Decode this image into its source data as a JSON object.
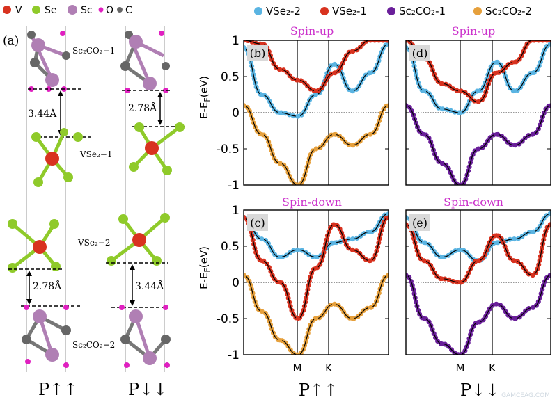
{
  "atom_legend": [
    {
      "symbol": "V",
      "color": "#d8321f"
    },
    {
      "symbol": "Se",
      "color": "#8fca2a"
    },
    {
      "symbol": "Sc",
      "color": "#b07fb4"
    },
    {
      "symbol": "O",
      "color": "#e020c0"
    },
    {
      "symbol": "C",
      "color": "#666666"
    }
  ],
  "band_legend": [
    {
      "label": "VSe₂-2",
      "color": "#5ab4e2"
    },
    {
      "label": "VSe₂-1",
      "color": "#d8321f"
    },
    {
      "label": "Sc₂CO₂-1",
      "color": "#6a1f9a"
    },
    {
      "label": "Sc₂CO₂-2",
      "color": "#e6a03c"
    }
  ],
  "structure": {
    "panel_label": "(a)",
    "layers": {
      "sc2co2_1": "Sc₂CO₂−1",
      "vse2_1": "VSe₂−1",
      "vse2_2": "VSe₂−2",
      "sc2co2_2": "Sc₂CO₂−2"
    },
    "dist_left_top": "3.44Å",
    "dist_right_top": "2.78Å",
    "dist_left_bottom": "2.78Å",
    "dist_right_bottom": "3.44Å",
    "config_left": "P↑↑",
    "config_right": "P↓↓"
  },
  "bands": {
    "ylabel": "E-Eₙ(eV)",
    "ylabel_main": "E-E",
    "ylabel_sub": "F",
    "ylabel_unit": "(eV)",
    "yticks": [
      "1",
      "0.5",
      "0",
      "-0.5",
      "-1"
    ],
    "ylim": [
      -1,
      1
    ],
    "xticks": [
      "M",
      "K"
    ],
    "spin_up": "Spin-up",
    "spin_down": "Spin-down",
    "config_left": "P↑↑",
    "config_right": "P↓↓",
    "panels": {
      "b": "(b)",
      "c": "(c)",
      "d": "(d)",
      "e": "(e)"
    }
  },
  "watermark": "GAMCEAG.COM",
  "chart_data": [
    {
      "type": "line",
      "panel": "(b)",
      "title": "Spin-up",
      "ylabel": "E-E_F(eV)",
      "ylim": [
        -1,
        1
      ],
      "xticks": [
        "M",
        "K"
      ],
      "series": [
        {
          "name": "VSe₂-2",
          "values": [
            0.9,
            0.25,
            0.0,
            -0.05,
            0.25,
            0.67,
            0.3,
            0.55,
            0.95
          ]
        },
        {
          "name": "VSe₂-1",
          "values": [
            1.0,
            0.95,
            0.6,
            0.45,
            0.3,
            0.55,
            0.85,
            1.0,
            1.0
          ]
        },
        {
          "name": "Sc₂CO₂-2",
          "values": [
            0.1,
            -0.3,
            -0.7,
            -1.0,
            -0.5,
            -0.3,
            -0.45,
            -0.3,
            0.1
          ]
        }
      ]
    },
    {
      "type": "line",
      "panel": "(c)",
      "title": "Spin-down",
      "ylabel": "E-E_F(eV)",
      "ylim": [
        -1,
        1
      ],
      "xticks": [
        "M",
        "K"
      ],
      "series": [
        {
          "name": "VSe₂-2",
          "values": [
            0.9,
            0.6,
            0.35,
            0.45,
            0.35,
            0.55,
            0.6,
            0.7,
            0.95
          ]
        },
        {
          "name": "VSe₂-1",
          "values": [
            0.9,
            0.3,
            0.0,
            -0.5,
            0.2,
            0.8,
            0.45,
            0.3,
            0.9
          ]
        },
        {
          "name": "Sc₂CO₂-2",
          "values": [
            0.1,
            -0.4,
            -0.8,
            -1.0,
            -0.5,
            -0.3,
            -0.5,
            -0.35,
            0.1
          ]
        }
      ]
    },
    {
      "type": "line",
      "panel": "(d)",
      "title": "Spin-up",
      "ylabel": "",
      "ylim": [
        -1,
        1
      ],
      "xticks": [
        "M",
        "K"
      ],
      "series": [
        {
          "name": "VSe₂-2",
          "values": [
            0.9,
            0.3,
            0.05,
            0.0,
            0.3,
            0.7,
            0.3,
            0.55,
            0.95
          ]
        },
        {
          "name": "VSe₂-1",
          "values": [
            1.0,
            0.75,
            0.4,
            0.3,
            0.15,
            0.55,
            0.7,
            1.0,
            1.0
          ]
        },
        {
          "name": "Sc₂CO₂-1",
          "values": [
            0.1,
            -0.3,
            -0.7,
            -1.0,
            -0.5,
            -0.3,
            -0.45,
            -0.3,
            0.1
          ]
        }
      ]
    },
    {
      "type": "line",
      "panel": "(e)",
      "title": "Spin-down",
      "ylabel": "",
      "ylim": [
        -1,
        1
      ],
      "xticks": [
        "M",
        "K"
      ],
      "series": [
        {
          "name": "VSe₂-2",
          "values": [
            0.9,
            0.55,
            0.35,
            0.45,
            0.3,
            0.55,
            0.6,
            0.7,
            0.95
          ]
        },
        {
          "name": "VSe₂-1",
          "values": [
            0.8,
            0.3,
            0.05,
            0.0,
            0.3,
            0.65,
            0.3,
            0.1,
            0.8
          ]
        },
        {
          "name": "Sc₂CO₂-1",
          "values": [
            0.1,
            -0.5,
            -0.85,
            -1.0,
            -0.55,
            -0.3,
            -0.5,
            -0.35,
            0.1
          ]
        }
      ]
    }
  ]
}
